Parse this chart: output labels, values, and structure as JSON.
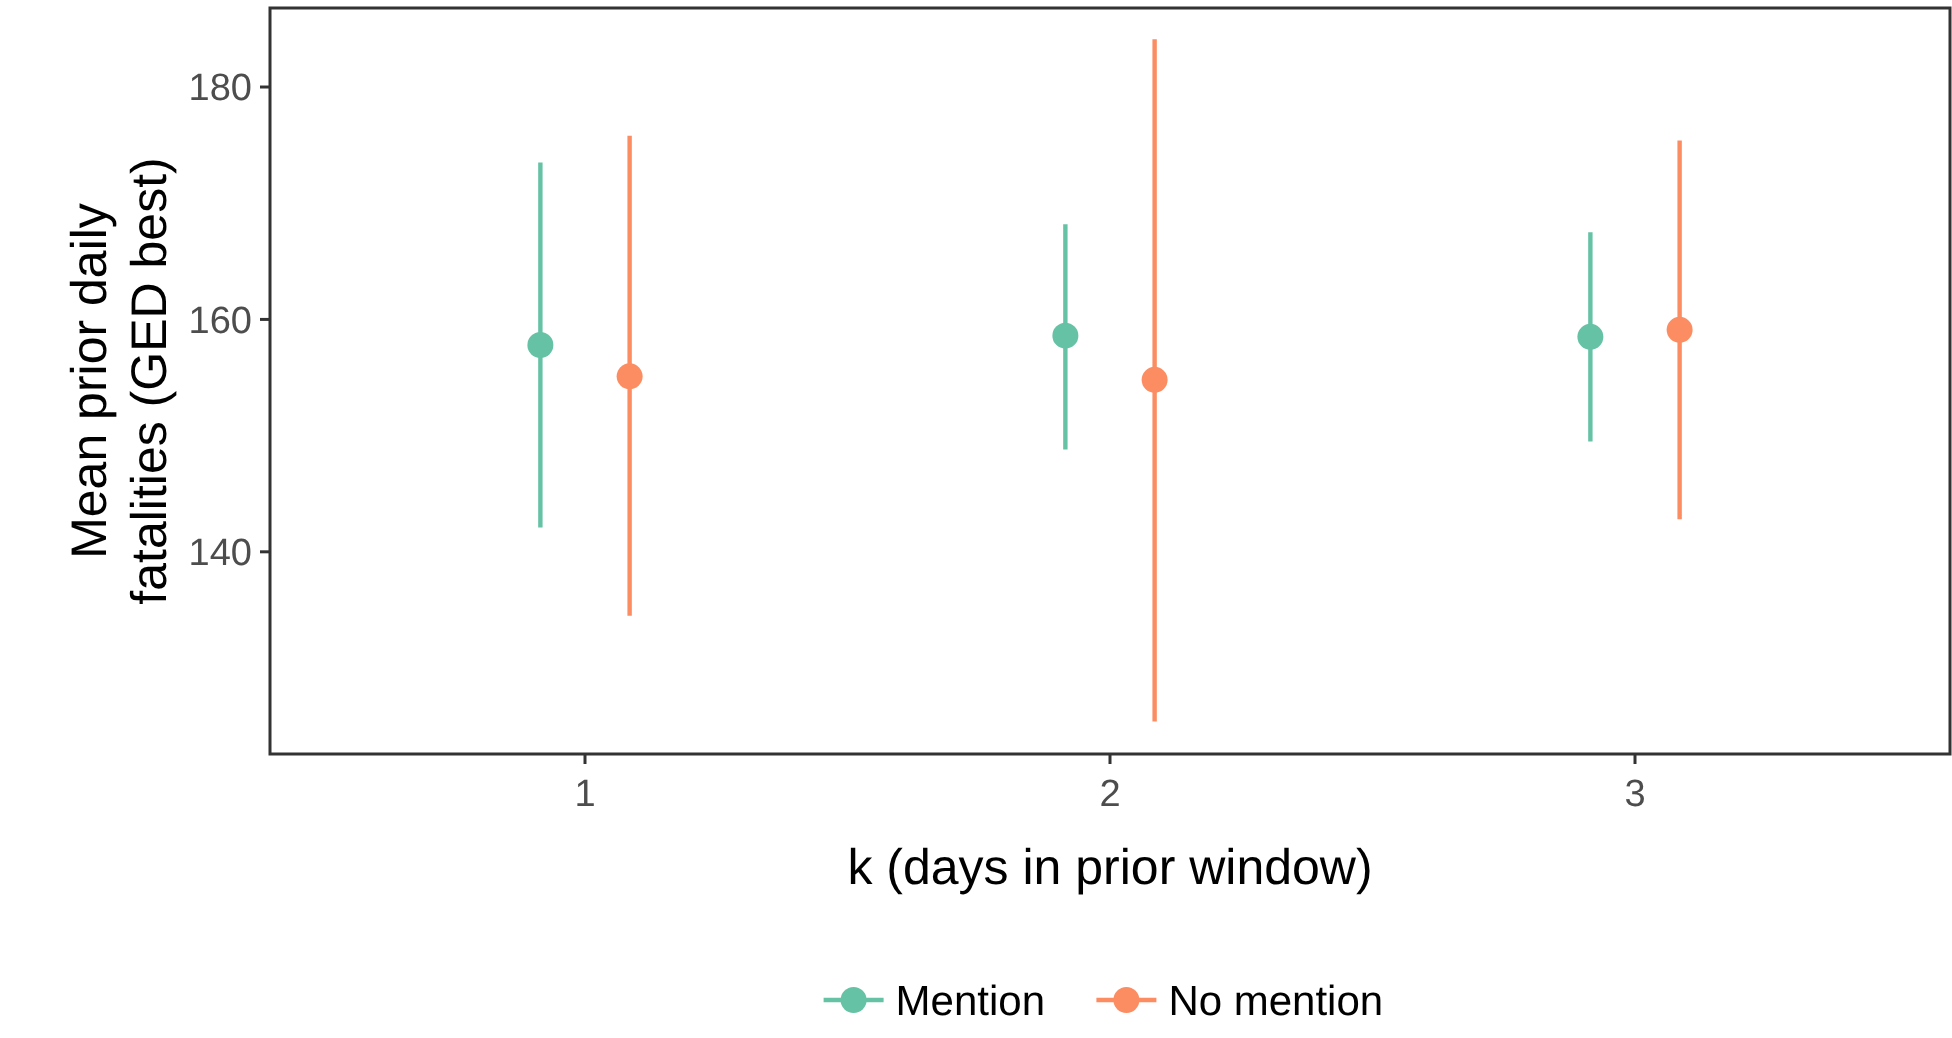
{
  "chart_data": {
    "type": "scatter",
    "xlabel": "k (days in prior window)",
    "ylabel": "Mean prior daily\nfatalities (GED best)",
    "categories": [
      "1",
      "2",
      "3"
    ],
    "ylim": [
      122.6,
      186.8
    ],
    "yticks": [
      140,
      160,
      180
    ],
    "grid": false,
    "legend": "bottom",
    "marker": "circle",
    "series": [
      {
        "name": "Mention",
        "color": "#66c2a5",
        "values": [
          157.8,
          158.6,
          158.5
        ],
        "errors": [
          [
            142.1,
            173.5
          ],
          [
            148.8,
            168.2
          ],
          [
            149.5,
            167.5
          ]
        ]
      },
      {
        "name": "No mention",
        "color": "#fc8d62",
        "values": [
          155.1,
          154.8,
          159.1
        ],
        "errors": [
          [
            134.5,
            175.8
          ],
          [
            125.4,
            184.1
          ],
          [
            142.8,
            175.4
          ]
        ]
      }
    ]
  }
}
